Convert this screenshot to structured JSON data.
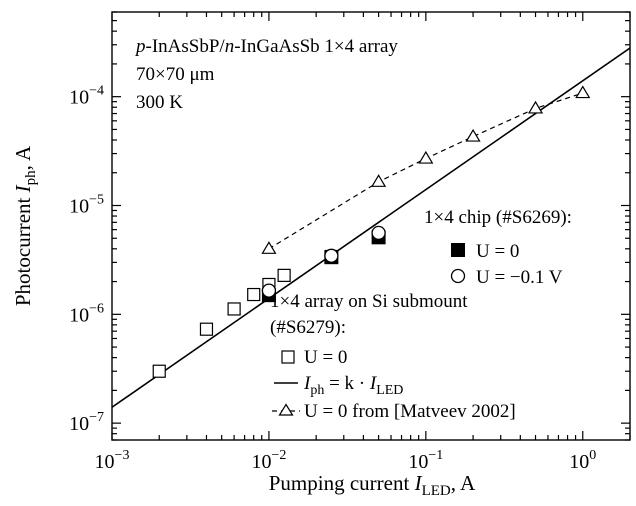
{
  "chart_data": {
    "type": "scatter",
    "x_scale": "log",
    "y_scale": "log",
    "xlim": [
      0.001,
      2
    ],
    "ylim": [
      7e-08,
      0.0006
    ],
    "grid": false,
    "xlabel": {
      "prefix": "Pumping current ",
      "var": "I",
      "sub": "LED",
      "suffix": ", A"
    },
    "ylabel": {
      "prefix": "Photocurrent ",
      "var": "I",
      "sub": "ph",
      "suffix": ", A"
    },
    "x_ticks": [
      {
        "value": 0.001,
        "base": "10",
        "exp": "−3"
      },
      {
        "value": 0.01,
        "base": "10",
        "exp": "−2"
      },
      {
        "value": 0.1,
        "base": "10",
        "exp": "−1"
      },
      {
        "value": 1,
        "base": "10",
        "exp": "0"
      }
    ],
    "y_ticks": [
      {
        "value": 1e-07,
        "base": "10",
        "exp": "−7"
      },
      {
        "value": 1e-06,
        "base": "10",
        "exp": "−6"
      },
      {
        "value": 1e-05,
        "base": "10",
        "exp": "−5"
      },
      {
        "value": 0.0001,
        "base": "10",
        "exp": "−4"
      }
    ],
    "annotation": {
      "line1": {
        "p": "p",
        "a": "-InAsSbP/",
        "n": "n",
        "b": "-InGaAsSb 1×4 array"
      },
      "line2": {
        "pre": "70×70 ",
        "mu": "μ",
        "post": "m"
      },
      "line3": "300 K"
    },
    "legend": {
      "chip_title": "1×4 chip (#S6269):",
      "chip_u0": "U = 0",
      "chip_u01": "U = −0.1 V",
      "array_title_1": "1×4 array on Si submount",
      "array_title_2": "(#S6279):",
      "array_u0": "U = 0",
      "fit_label": {
        "var": "I",
        "sub": "ph",
        "mid": " = k · ",
        "var2": "I",
        "sub2": "LED"
      },
      "ref_label": "U = 0 from [Matveev 2002]"
    },
    "series": [
      {
        "key": "array_si",
        "marker": "open-square",
        "x": [
          0.002,
          0.004,
          0.006,
          0.008,
          0.01,
          0.0125,
          0.025,
          0.05
        ],
        "y": [
          3e-07,
          7.3e-07,
          1.12e-06,
          1.52e-06,
          1.88e-06,
          2.28e-06,
          3.4e-06,
          5.1e-06
        ]
      },
      {
        "key": "chip_u0",
        "marker": "filled-square",
        "x": [
          0.01,
          0.025,
          0.05
        ],
        "y": [
          1.5e-06,
          3.35e-06,
          5.1e-06
        ]
      },
      {
        "key": "chip_u01",
        "marker": "open-circle",
        "x": [
          0.01,
          0.025,
          0.05
        ],
        "y": [
          1.65e-06,
          3.45e-06,
          5.6e-06
        ]
      },
      {
        "key": "matveev2002",
        "marker": "open-triangle",
        "line": "dashed",
        "x": [
          0.01,
          0.05,
          0.1,
          0.2,
          0.5,
          1.0
        ],
        "y": [
          4e-06,
          1.65e-05,
          2.7e-05,
          4.3e-05,
          7.8e-05,
          0.000108
        ]
      },
      {
        "key": "fit",
        "line": "solid",
        "x": [
          0.001,
          2
        ],
        "y": [
          1.4e-07,
          0.00028
        ]
      }
    ]
  }
}
